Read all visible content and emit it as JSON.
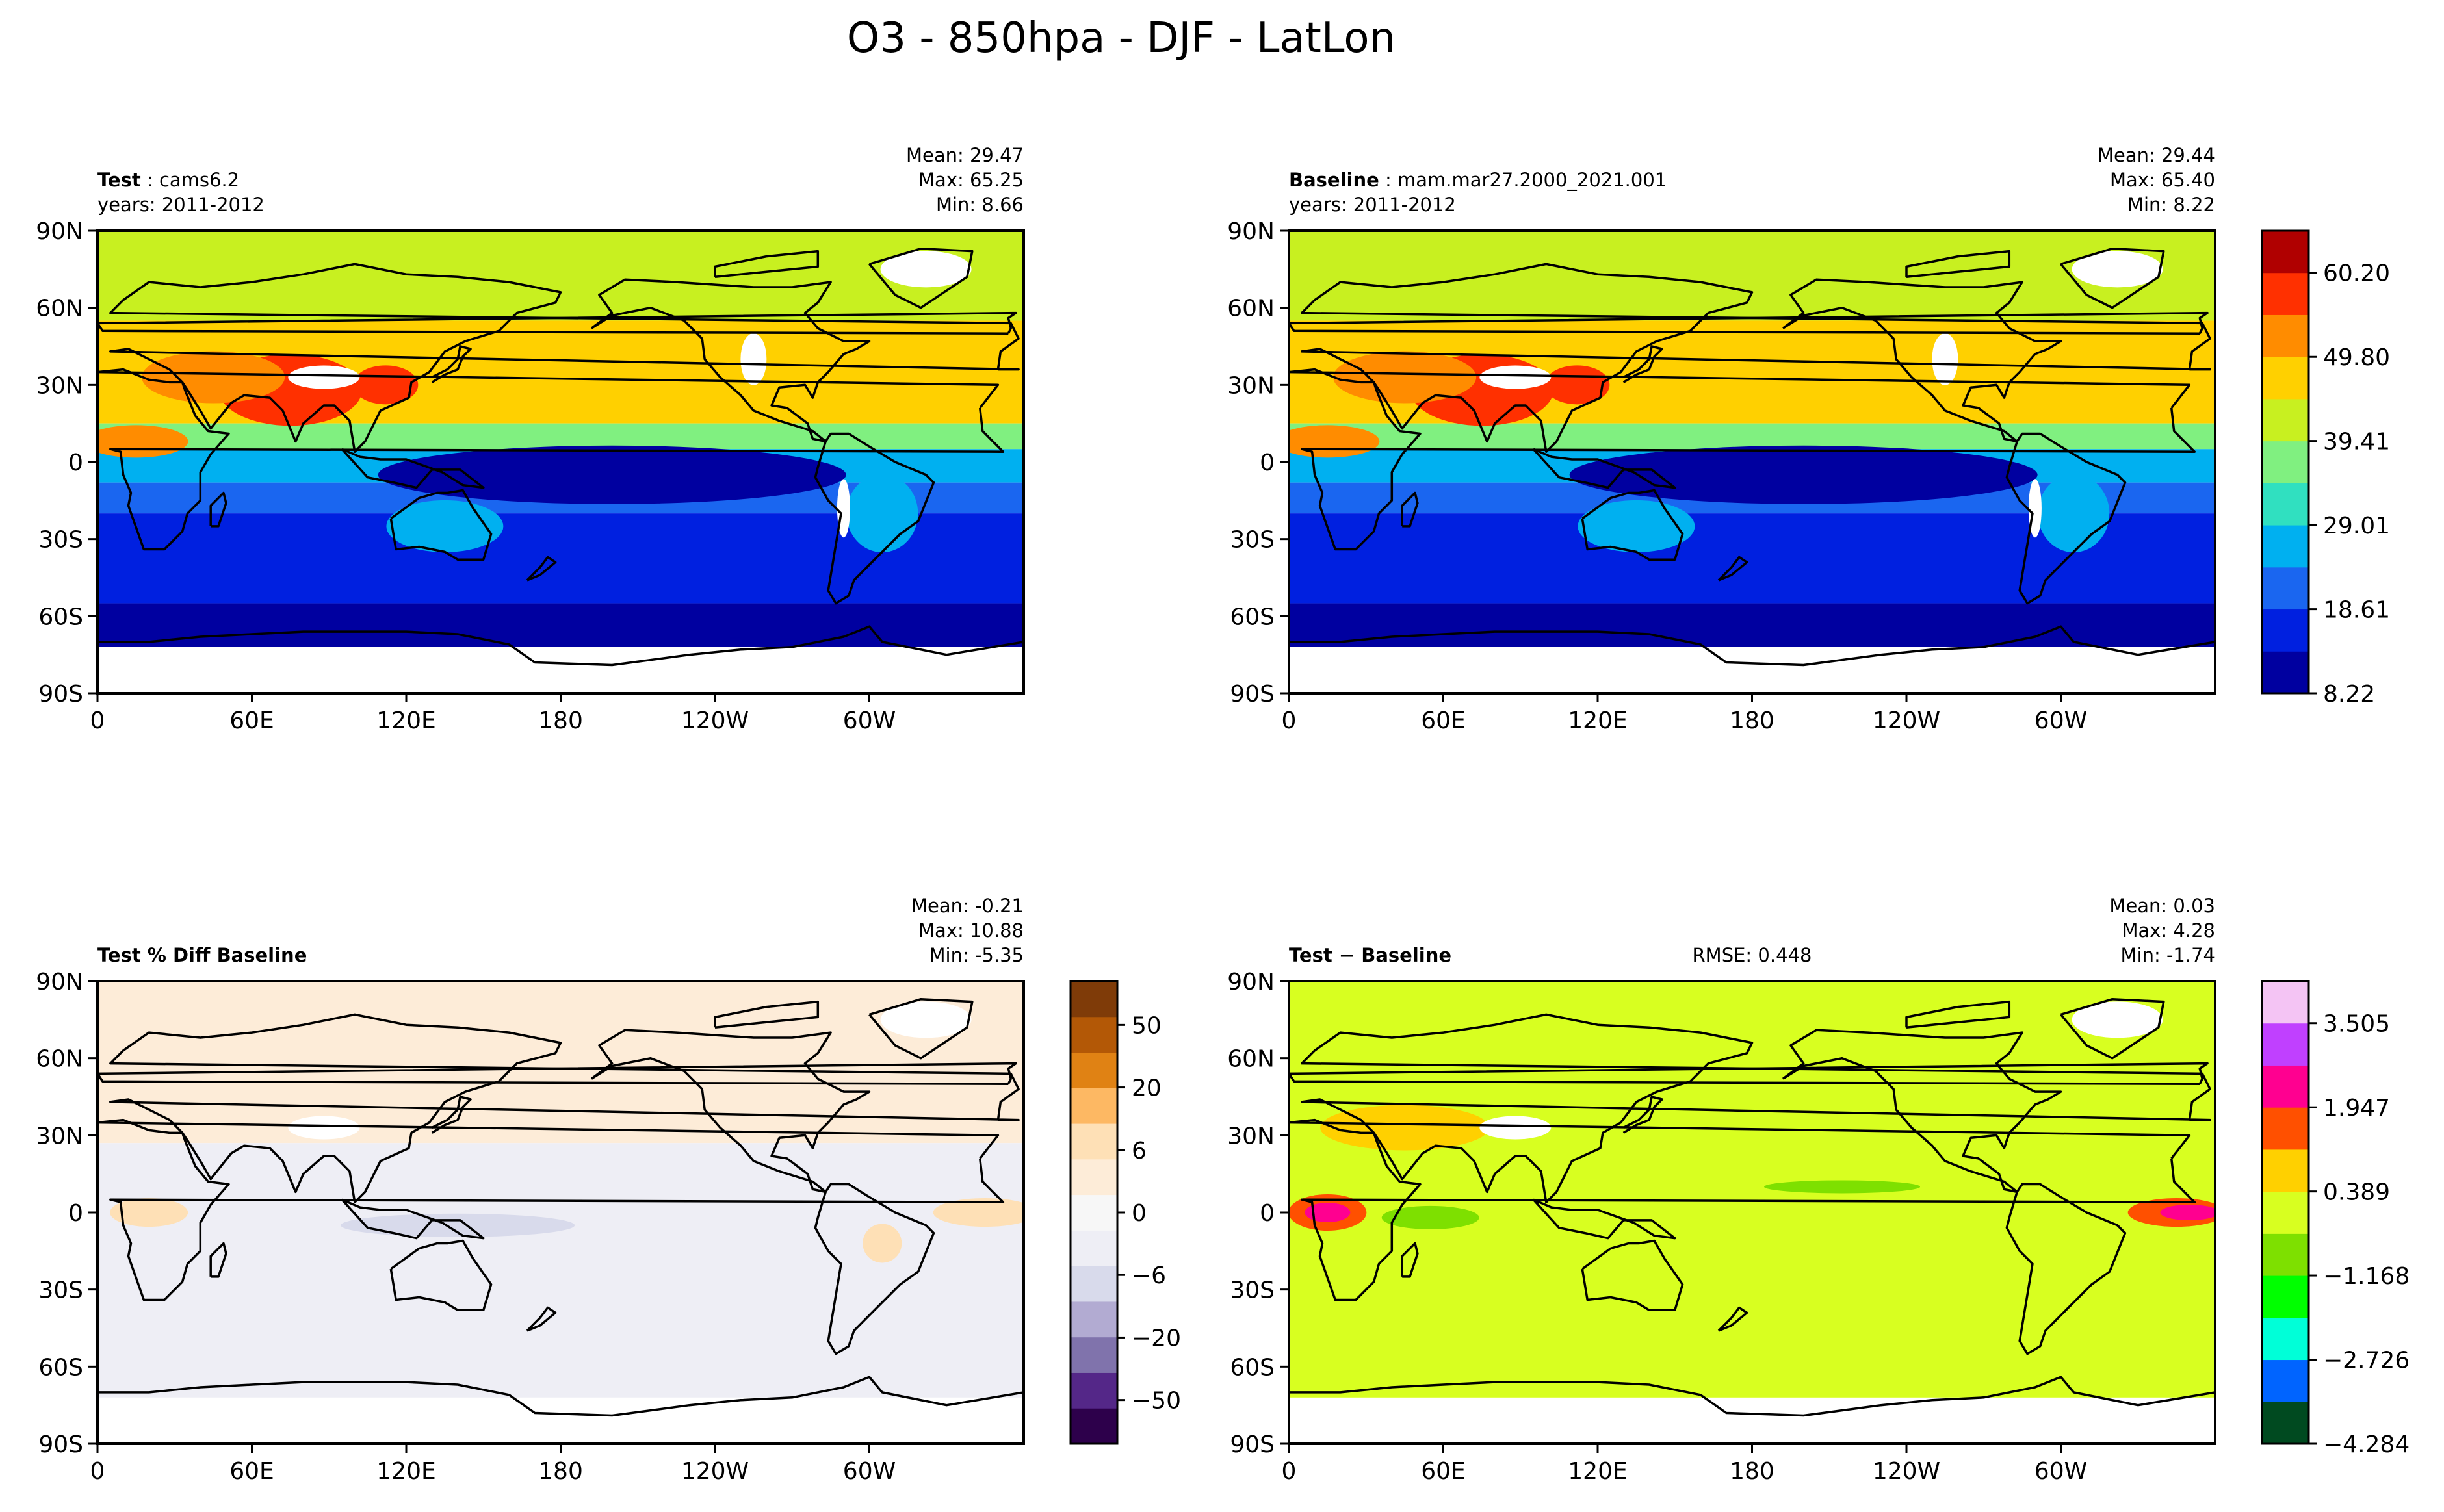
{
  "figure": {
    "title": "O3 - 850hpa - DJF - LatLon"
  },
  "colors": {
    "abs_cmap": [
      "#0000a0",
      "#0020e0",
      "#1a66f0",
      "#00b0f0",
      "#30e0c0",
      "#80f080",
      "#c8f020",
      "#ffd000",
      "#ff8c00",
      "#ff3000",
      "#b00000"
    ],
    "pct_cmap": [
      "#2d004b",
      "#542788",
      "#8073ac",
      "#b2abd2",
      "#d8daeb",
      "#eeeef5",
      "#f7f7f7",
      "#fdecd8",
      "#fee0b6",
      "#fdb863",
      "#e08214",
      "#b35806",
      "#7f3b08"
    ],
    "diff_cmap": [
      "#004a20",
      "#0064ff",
      "#00ffd8",
      "#00ff00",
      "#7ee000",
      "#d8ff20",
      "#ffd000",
      "#ff5000",
      "#ff0090",
      "#c040ff",
      "#f4c4f4"
    ],
    "land_line": "#000000",
    "missing": "#ffffff"
  },
  "chart_data": [
    {
      "type": "heatmap",
      "id": "test",
      "title_bold": "Test",
      "title_rest": ": cams6.2",
      "subtitle": "years: 2011-2012",
      "stats": [
        "Mean: 29.47",
        "Max: 65.25",
        "Min:  8.66"
      ],
      "xticks": [
        "0",
        "60E",
        "120E",
        "180",
        "120W",
        "60W"
      ],
      "yticks": [
        "90N",
        "60N",
        "30N",
        "0",
        "30S",
        "60S",
        "90S"
      ],
      "xlim": [
        0,
        360
      ],
      "ylim": [
        -90,
        90
      ],
      "colormap": "abs"
    },
    {
      "type": "heatmap",
      "id": "baseline",
      "title_bold": "Baseline",
      "title_rest": ": mam.mar27.2000_2021.001",
      "subtitle": "years: 2011-2012",
      "stats": [
        "Mean: 29.44",
        "Max: 65.40",
        "Min:  8.22"
      ],
      "xticks": [
        "0",
        "60E",
        "120E",
        "180",
        "120W",
        "60W"
      ],
      "yticks": [
        "90N",
        "60N",
        "30N",
        "0",
        "30S",
        "60S",
        "90S"
      ],
      "xlim": [
        0,
        360
      ],
      "ylim": [
        -90,
        90
      ],
      "colormap": "abs",
      "colorbar": {
        "ticks": [
          "60.20",
          "49.80",
          "39.41",
          "29.01",
          "18.61",
          "8.22"
        ],
        "values": [
          60.2,
          49.8,
          39.41,
          29.01,
          18.61,
          8.22
        ],
        "range": [
          8.22,
          65.4
        ]
      }
    },
    {
      "type": "heatmap",
      "id": "pctdiff",
      "title_bold": "Test % Diff Baseline",
      "title_rest": "",
      "subtitle": "",
      "stats": [
        "Mean: -0.21",
        "Max: 10.88",
        "Min: -5.35"
      ],
      "xticks": [
        "0",
        "60E",
        "120E",
        "180",
        "120W",
        "60W"
      ],
      "yticks": [
        "90N",
        "60N",
        "30N",
        "0",
        "30S",
        "60S",
        "90S"
      ],
      "xlim": [
        0,
        360
      ],
      "ylim": [
        -90,
        90
      ],
      "colormap": "pct",
      "colorbar": {
        "ticks": [
          "50",
          "20",
          "6",
          "0",
          "−6",
          "−20",
          "−50"
        ]
      }
    },
    {
      "type": "heatmap",
      "id": "diff",
      "title_bold": "Test − Baseline",
      "title_rest": "",
      "subtitle": "",
      "rmse": "RMSE: 0.448",
      "stats": [
        "Mean:  0.03",
        "Max:  4.28",
        "Min: -1.74"
      ],
      "xticks": [
        "0",
        "60E",
        "120E",
        "180",
        "120W",
        "60W"
      ],
      "yticks": [
        "90N",
        "60N",
        "30N",
        "0",
        "30S",
        "60S",
        "90S"
      ],
      "xlim": [
        0,
        360
      ],
      "ylim": [
        -90,
        90
      ],
      "colormap": "diff",
      "colorbar": {
        "ticks": [
          "3.505",
          "1.947",
          "0.389",
          "−1.168",
          "−2.726",
          "−4.284"
        ],
        "values": [
          3.505,
          1.947,
          0.389,
          -1.168,
          -2.726,
          -4.284
        ],
        "range": [
          -4.284,
          4.284
        ]
      }
    }
  ]
}
